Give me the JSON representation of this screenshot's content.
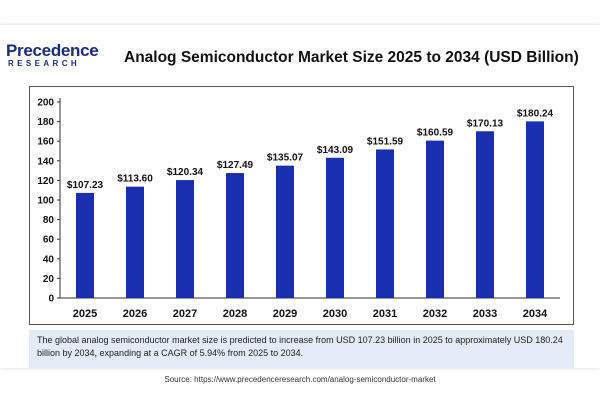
{
  "brand": {
    "name": "Precedence",
    "tagline": "RESEARCH",
    "color": "#1b2e7a",
    "accent": "#2a7fd4"
  },
  "chart_data": {
    "type": "bar",
    "title": "Analog Semiconductor Market Size 2025 to 2034 (USD Billion)",
    "categories": [
      "2025",
      "2026",
      "2027",
      "2028",
      "2029",
      "2030",
      "2031",
      "2032",
      "2033",
      "2034"
    ],
    "values": [
      107.23,
      113.6,
      120.34,
      127.49,
      135.07,
      143.09,
      151.59,
      160.59,
      170.13,
      180.24
    ],
    "data_labels": [
      "$107.23",
      "$113.60",
      "$120.34",
      "$127.49",
      "$135.07",
      "$143.09",
      "$151.59",
      "$160.59",
      "$170.13",
      "$180.24"
    ],
    "yticks": [
      "0",
      "20",
      "40",
      "60",
      "80",
      "100",
      "120",
      "140",
      "160",
      "180",
      "200"
    ],
    "ylim": [
      0,
      200
    ],
    "xlabel": "",
    "ylabel": "",
    "grid": false,
    "legend": "none",
    "bar_color": "#1a2fb0"
  },
  "description": "The global analog semiconductor market size is predicted to increase from USD 107.23 billion in 2025 to approximately USD 180.24 billion by 2034, expanding at a CAGR of 5.94% from 2025 to 2034.",
  "source": "Source: https://www.precedenceresearch.com/analog-semiconductor-market"
}
